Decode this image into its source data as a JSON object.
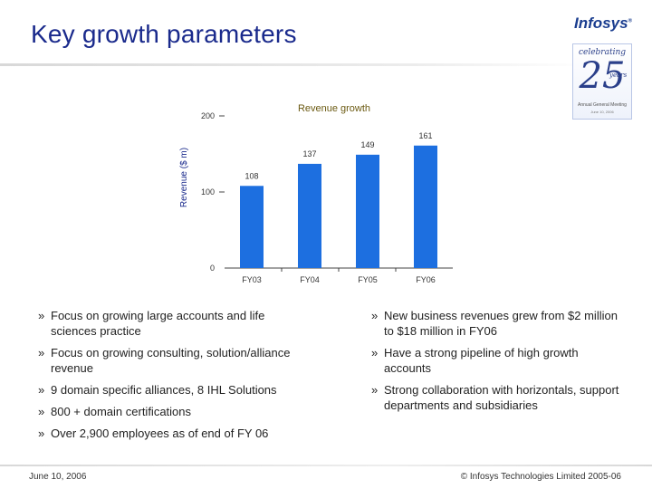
{
  "slide": {
    "title": "Key growth parameters",
    "logo_text": "Infosys",
    "logo_reg": "®",
    "badge": {
      "celebrating": "celebrating",
      "number": "25",
      "years": "years",
      "meeting": "Annual General Meeting",
      "date": "June 10, 2006"
    }
  },
  "colors": {
    "title": "#1a2a8c",
    "bar": "#1d6fe0",
    "chart_title": "#6b5a12"
  },
  "chart_data": {
    "type": "bar",
    "title": "Revenue growth",
    "ylabel": "Revenue ($ m)",
    "xlabel": "",
    "categories": [
      "FY03",
      "FY04",
      "FY05",
      "FY06"
    ],
    "values": [
      108,
      137,
      149,
      161
    ],
    "yticks": [
      "0",
      "100",
      "200"
    ],
    "ylim": [
      0,
      200
    ],
    "grid": false
  },
  "bullets": {
    "marker": "»",
    "left": [
      "Focus on growing large accounts and life sciences practice",
      "Focus on growing consulting, solution/alliance revenue",
      "9 domain specific alliances, 8 IHL Solutions",
      "800 + domain certifications",
      "Over 2,900 employees as of end of FY 06"
    ],
    "right": [
      "New business revenues grew from $2 million to $18 million in FY06",
      "Have a strong pipeline of high growth accounts",
      "Strong collaboration with horizontals, support departments and subsidiaries"
    ]
  },
  "footer": {
    "date": "June 10, 2006",
    "copyright": "© Infosys Technologies Limited 2005-06"
  }
}
